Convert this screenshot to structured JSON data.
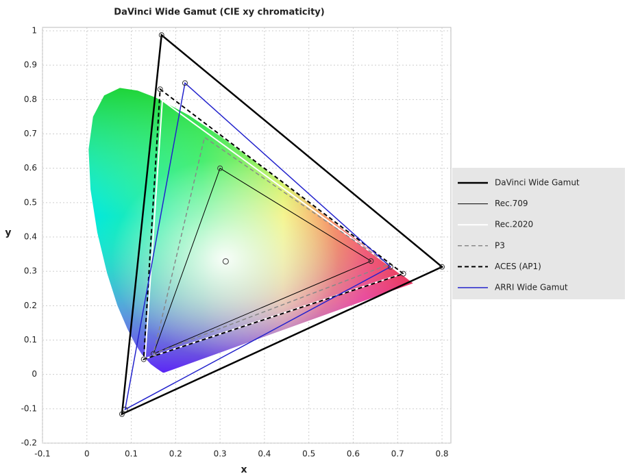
{
  "chart_data": {
    "type": "chromaticity",
    "title": "DaVinci Wide Gamut (CIE xy chromaticity)",
    "x_label": "x",
    "y_label": "y",
    "xlim": [
      -0.1,
      0.82
    ],
    "ylim": [
      -0.2,
      1.01
    ],
    "xticks": [
      -0.1,
      0,
      0.1,
      0.2,
      0.3,
      0.4,
      0.5,
      0.6,
      0.7,
      0.8
    ],
    "yticks": [
      -0.2,
      -0.1,
      0,
      0.1,
      0.2,
      0.3,
      0.4,
      0.5,
      0.6,
      0.7,
      0.8,
      0.9,
      1
    ],
    "grid": true,
    "legend": "right",
    "locus": {
      "x": [
        0.1741,
        0.1714,
        0.1644,
        0.1566,
        0.144,
        0.1241,
        0.1096,
        0.0913,
        0.0687,
        0.0454,
        0.0235,
        0.0082,
        0.0039,
        0.0139,
        0.0389,
        0.0743,
        0.1142,
        0.1547,
        0.2296,
        0.3016,
        0.3731,
        0.4441,
        0.5125,
        0.5752,
        0.627,
        0.6915,
        0.719,
        0.7347
      ],
      "y": [
        0.005,
        0.0051,
        0.0109,
        0.0177,
        0.0297,
        0.0578,
        0.0868,
        0.1327,
        0.2007,
        0.295,
        0.4127,
        0.5384,
        0.6548,
        0.7502,
        0.812,
        0.8338,
        0.8262,
        0.8059,
        0.7543,
        0.6923,
        0.6245,
        0.5547,
        0.4866,
        0.4242,
        0.3725,
        0.3083,
        0.2809,
        0.2653
      ]
    },
    "white_point": {
      "x": 0.3127,
      "y": 0.329
    },
    "series": [
      {
        "name": "DaVinci Wide Gamut",
        "color": "#000000",
        "width": 2.5,
        "dash": "none",
        "markers": true,
        "x": [
          0.8,
          0.1682,
          0.079
        ],
        "y": [
          0.313,
          0.9877,
          -0.1155
        ]
      },
      {
        "name": "Rec.709",
        "color": "#000000",
        "width": 1,
        "dash": "none",
        "markers": true,
        "x": [
          0.64,
          0.3,
          0.15
        ],
        "y": [
          0.33,
          0.6,
          0.06
        ]
      },
      {
        "name": "Rec.2020",
        "color": "#ffffff",
        "width": 2,
        "dash": "none",
        "markers": false,
        "x": [
          0.708,
          0.17,
          0.131
        ],
        "y": [
          0.292,
          0.797,
          0.046
        ]
      },
      {
        "name": "P3",
        "color": "#888888",
        "width": 1.5,
        "dash": "6 4",
        "markers": false,
        "x": [
          0.68,
          0.265,
          0.15
        ],
        "y": [
          0.32,
          0.69,
          0.06
        ]
      },
      {
        "name": "ACES (AP1)",
        "color": "#000000",
        "width": 2,
        "dash": "6 4",
        "markers": true,
        "x": [
          0.713,
          0.165,
          0.128
        ],
        "y": [
          0.293,
          0.83,
          0.044
        ]
      },
      {
        "name": "ARRI Wide Gamut",
        "color": "#2222cc",
        "width": 1.5,
        "dash": "none",
        "markers": true,
        "x": [
          0.684,
          0.221,
          0.0861
        ],
        "y": [
          0.313,
          0.848,
          -0.102
        ]
      }
    ]
  }
}
